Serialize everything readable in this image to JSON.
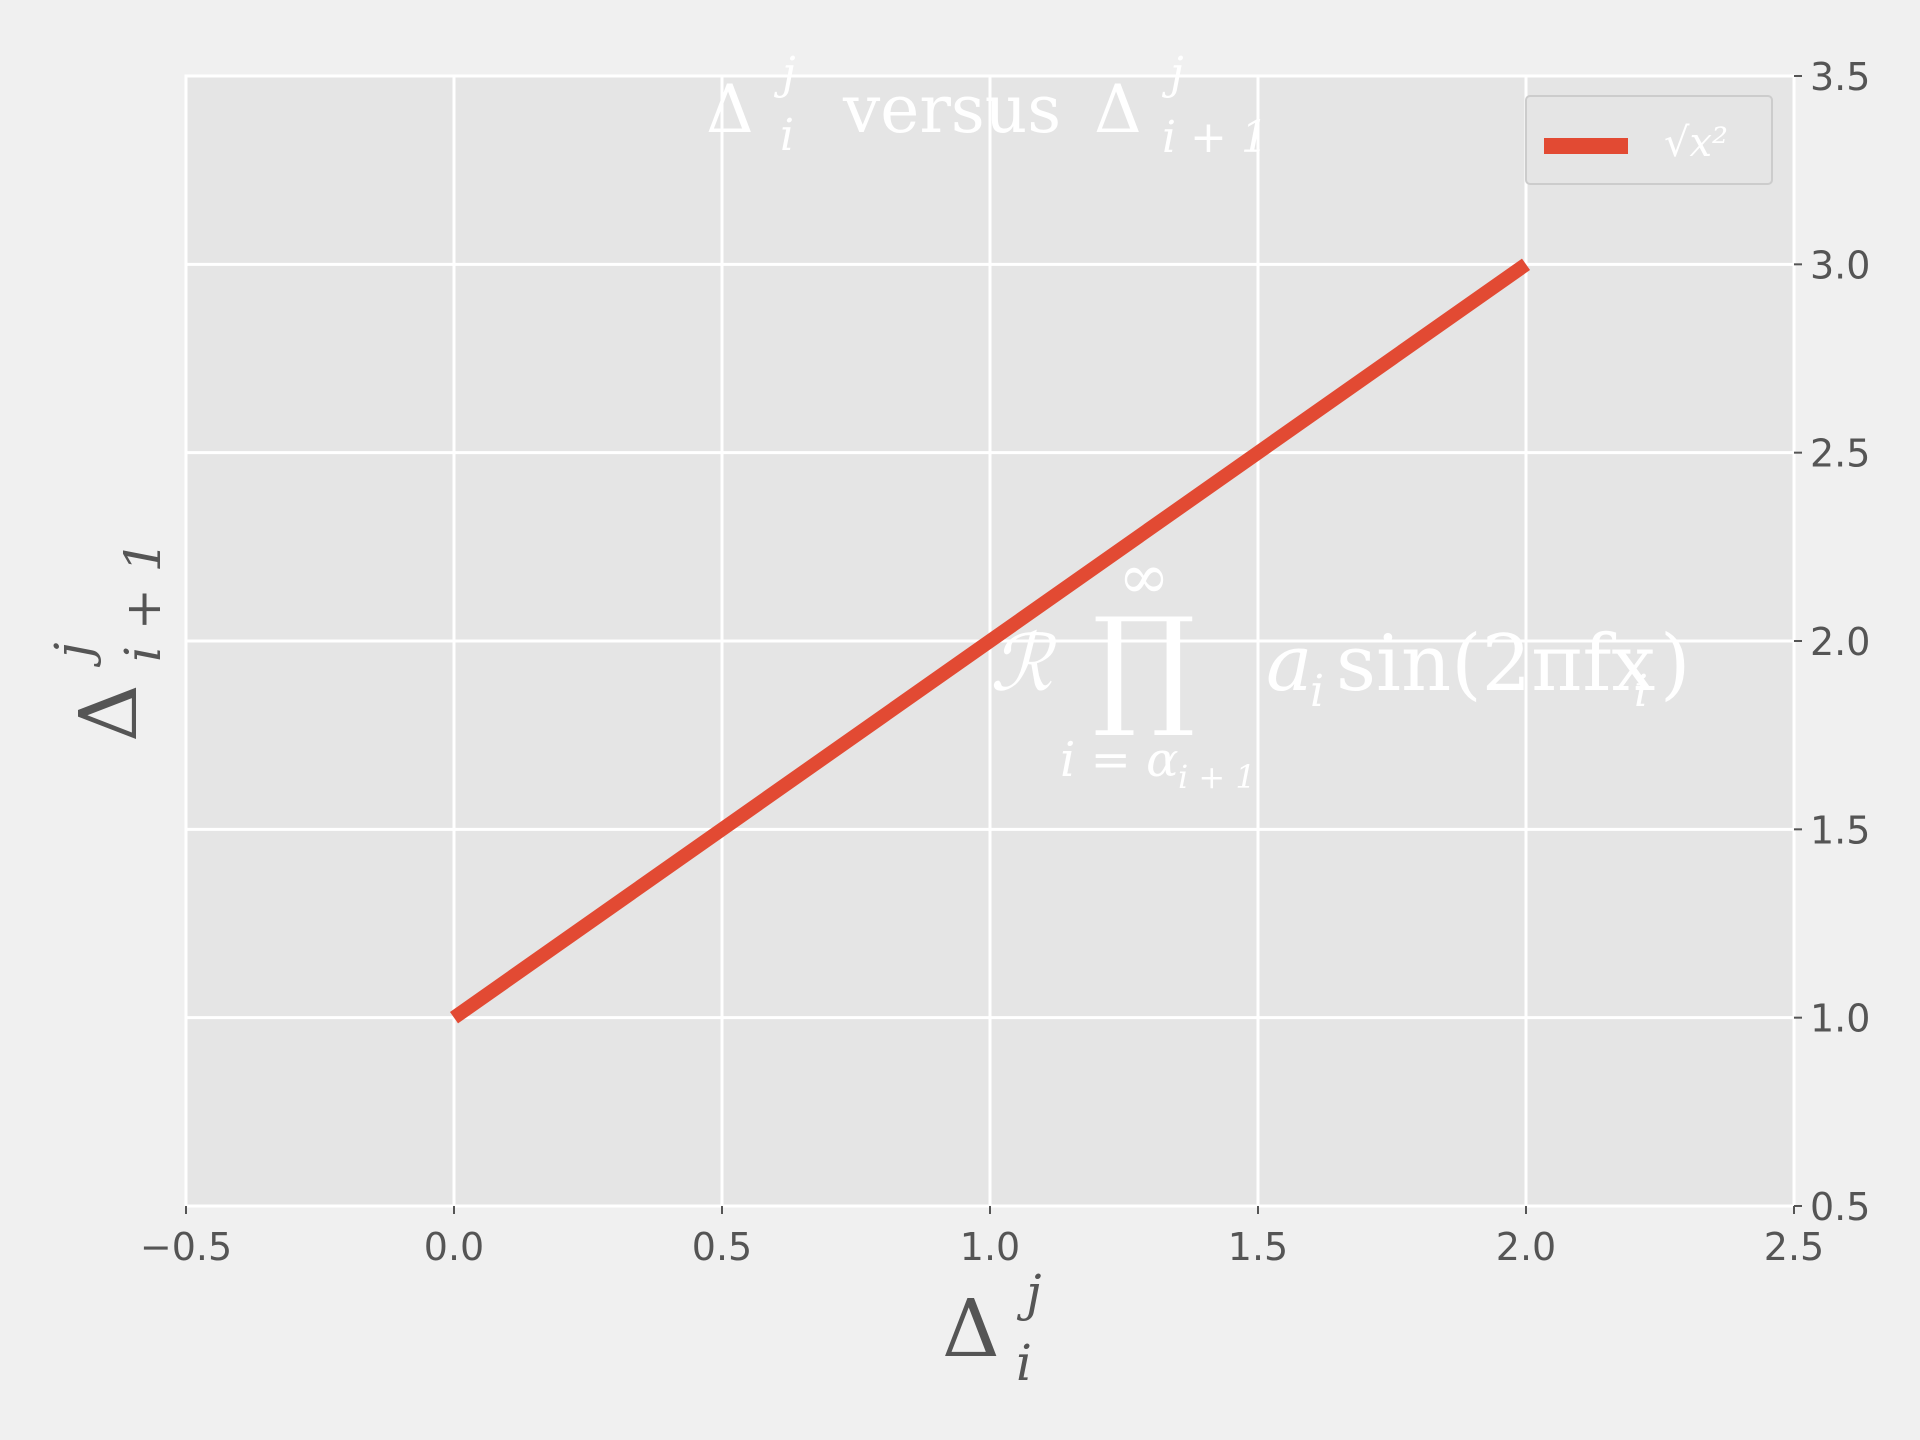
{
  "chart_data": {
    "type": "line",
    "title": {
      "base1": "Δ",
      "sup1": "j",
      "sub1": "i",
      "middle": " versus ",
      "base2": "Δ",
      "sup2": "j",
      "sub2": "i + 1"
    },
    "xlabel": {
      "base": "Δ",
      "sup": "j",
      "sub": "i"
    },
    "ylabel": {
      "base": "Δ",
      "sup": "j",
      "sub": "i + 1"
    },
    "xlim": [
      -0.5,
      2.5
    ],
    "ylim": [
      0.5,
      3.5
    ],
    "x_ticks": [
      -0.5,
      0.0,
      0.5,
      1.0,
      1.5,
      2.0,
      2.5
    ],
    "y_ticks": [
      0.5,
      1.0,
      1.5,
      2.0,
      2.5,
      3.0,
      3.5
    ],
    "x_tick_labels": [
      "−0.5",
      "0.0",
      "0.5",
      "1.0",
      "1.5",
      "2.0",
      "2.5"
    ],
    "y_tick_labels": [
      "0.5",
      "1.0",
      "1.5",
      "2.0",
      "2.5",
      "3.0",
      "3.5"
    ],
    "y_axis_side": "right",
    "grid": true,
    "legend_position": "top-right",
    "series": [
      {
        "name": "√x²",
        "color": "#e24a33",
        "x": [
          0,
          1,
          2
        ],
        "y": [
          1,
          2,
          3
        ]
      }
    ],
    "annotation": {
      "script_r": "ℛ",
      "product": "∏",
      "upper": "∞",
      "lower": "i = α",
      "lower_sub": "i + 1",
      "term_a": "a",
      "term_a_sub": "i",
      "term_rest": "sin(2πfx",
      "term_x_sub": "i",
      "term_close": ")"
    },
    "colors": {
      "background": "#f0f0f0",
      "axes_background": "#e5e5e5",
      "grid": "#ffffff",
      "text": "#555555",
      "title_text": "#ffffff"
    }
  }
}
